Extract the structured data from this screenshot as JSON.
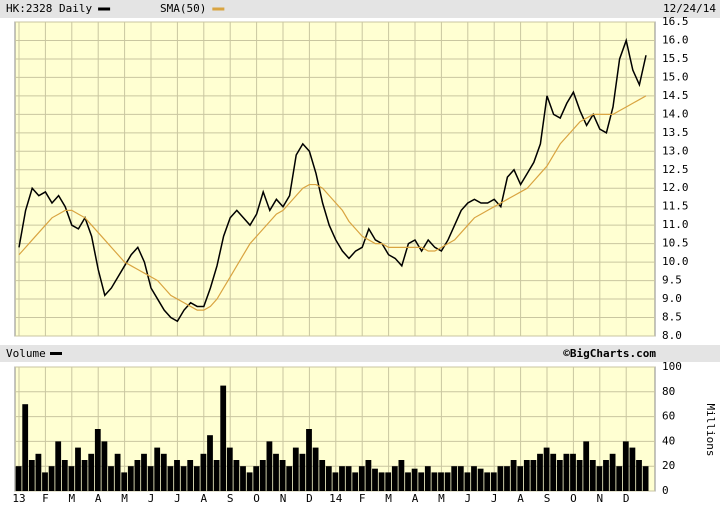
{
  "chart_data": [
    {
      "type": "line",
      "date_label": "12/24/14",
      "series": [
        {
          "name": "HK:2328 Daily",
          "color": "#000000",
          "values": [
            10.4,
            11.4,
            12.0,
            11.8,
            11.9,
            11.6,
            11.8,
            11.5,
            11.0,
            10.9,
            11.2,
            10.7,
            9.8,
            9.1,
            9.3,
            9.6,
            9.9,
            10.2,
            10.4,
            10.0,
            9.3,
            9.0,
            8.7,
            8.5,
            8.4,
            8.7,
            8.9,
            8.8,
            8.8,
            9.3,
            9.9,
            10.7,
            11.2,
            11.4,
            11.2,
            11.0,
            11.3,
            11.9,
            11.4,
            11.7,
            11.5,
            11.8,
            12.9,
            13.2,
            13.0,
            12.4,
            11.6,
            11.0,
            10.6,
            10.3,
            10.1,
            10.3,
            10.4,
            10.9,
            10.6,
            10.5,
            10.2,
            10.1,
            9.9,
            10.5,
            10.6,
            10.3,
            10.6,
            10.4,
            10.3,
            10.6,
            11.0,
            11.4,
            11.6,
            11.7,
            11.6,
            11.6,
            11.7,
            11.5,
            12.3,
            12.5,
            12.1,
            12.4,
            12.7,
            13.2,
            14.5,
            14.0,
            13.9,
            14.3,
            14.6,
            14.1,
            13.7,
            14.0,
            13.6,
            13.5,
            14.2,
            15.5,
            16.0,
            15.2,
            14.8,
            15.6
          ]
        },
        {
          "name": "SMA(50)",
          "color": "#d9a441",
          "values": [
            10.2,
            10.4,
            10.6,
            10.8,
            11.0,
            11.2,
            11.3,
            11.4,
            11.4,
            11.3,
            11.2,
            11.0,
            10.8,
            10.6,
            10.4,
            10.2,
            10.0,
            9.9,
            9.8,
            9.7,
            9.6,
            9.5,
            9.3,
            9.1,
            9.0,
            8.9,
            8.8,
            8.7,
            8.7,
            8.8,
            9.0,
            9.3,
            9.6,
            9.9,
            10.2,
            10.5,
            10.7,
            10.9,
            11.1,
            11.3,
            11.4,
            11.6,
            11.8,
            12.0,
            12.1,
            12.1,
            12.0,
            11.8,
            11.6,
            11.4,
            11.1,
            10.9,
            10.7,
            10.6,
            10.5,
            10.5,
            10.4,
            10.4,
            10.4,
            10.4,
            10.4,
            10.4,
            10.3,
            10.3,
            10.4,
            10.5,
            10.6,
            10.8,
            11.0,
            11.2,
            11.3,
            11.4,
            11.5,
            11.6,
            11.7,
            11.8,
            11.9,
            12.0,
            12.2,
            12.4,
            12.6,
            12.9,
            13.2,
            13.4,
            13.6,
            13.8,
            13.9,
            14.0,
            14.0,
            14.0,
            14.0,
            14.1,
            14.2,
            14.3,
            14.4,
            14.5
          ]
        }
      ],
      "ylim": [
        8.0,
        16.5
      ],
      "yticks": [
        {
          "value": 8,
          "label": "8.0"
        },
        8.5,
        {
          "value": 9,
          "label": "9.0"
        },
        9.5,
        {
          "value": 10,
          "label": "10.0"
        },
        10.5,
        {
          "value": 11,
          "label": "11.0"
        },
        11.5,
        {
          "value": 12,
          "label": "12.0"
        },
        12.5,
        {
          "value": 13,
          "label": "13.0"
        },
        13.5,
        {
          "value": 14,
          "label": "14.0"
        },
        14.5,
        {
          "value": 15,
          "label": "15.0"
        },
        15.5,
        {
          "value": 16,
          "label": "16.0"
        },
        16.5
      ],
      "grid": true
    },
    {
      "type": "bar",
      "title": "Volume",
      "credit": "©BigCharts.com",
      "y_label": "Millions",
      "color": "#000000",
      "categories": [
        "13",
        null,
        null,
        null,
        "F",
        null,
        null,
        null,
        "M",
        null,
        null,
        null,
        "A",
        null,
        null,
        null,
        "M",
        null,
        null,
        null,
        "J",
        null,
        null,
        null,
        "J",
        null,
        null,
        null,
        "A",
        null,
        null,
        null,
        "S",
        null,
        null,
        null,
        "O",
        null,
        null,
        null,
        "N",
        null,
        null,
        null,
        "D",
        null,
        null,
        null,
        "14",
        null,
        null,
        null,
        "F",
        null,
        null,
        null,
        "M",
        null,
        null,
        null,
        "A",
        null,
        null,
        null,
        "M",
        null,
        null,
        null,
        "J",
        null,
        null,
        null,
        "J",
        null,
        null,
        null,
        "A",
        null,
        null,
        null,
        "S",
        null,
        null,
        null,
        "O",
        null,
        null,
        null,
        "N",
        null,
        null,
        null,
        "D",
        null,
        null,
        null
      ],
      "values": [
        20,
        70,
        25,
        30,
        15,
        20,
        40,
        25,
        20,
        35,
        25,
        30,
        50,
        40,
        20,
        30,
        15,
        20,
        25,
        30,
        20,
        35,
        30,
        20,
        25,
        20,
        25,
        20,
        30,
        45,
        25,
        85,
        35,
        25,
        20,
        15,
        20,
        25,
        40,
        30,
        25,
        20,
        35,
        30,
        50,
        35,
        25,
        20,
        15,
        20,
        20,
        15,
        20,
        25,
        18,
        15,
        15,
        20,
        25,
        15,
        18,
        15,
        20,
        15,
        15,
        15,
        20,
        20,
        15,
        20,
        18,
        15,
        15,
        20,
        20,
        25,
        20,
        25,
        25,
        30,
        35,
        30,
        25,
        30,
        30,
        25,
        40,
        25,
        20,
        25,
        30,
        20,
        40,
        35,
        25,
        20
      ],
      "ylim": [
        0,
        100
      ],
      "yticks": [
        0,
        20,
        40,
        60,
        80,
        100
      ],
      "grid": true
    }
  ]
}
